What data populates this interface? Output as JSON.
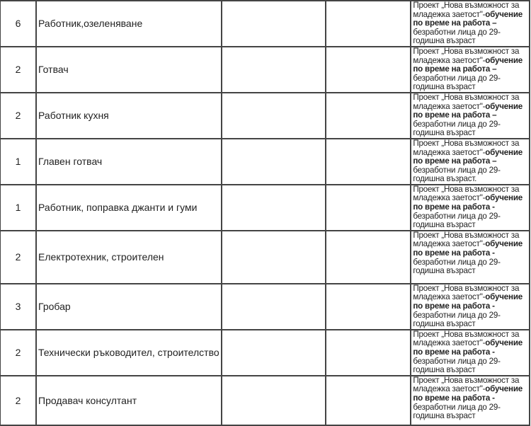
{
  "rows": [
    {
      "count": "6",
      "position": "Работник,озеленяване",
      "project_a": "Проект „Нова възможност за младежка заетост\"-",
      "project_b": "обучение по време на работа –",
      "project_c": "безработни лица до 29-годишна възраст"
    },
    {
      "count": "2",
      "position": "Готвач",
      "project_a": "Проект „Нова възможност за младежка заетост\"-",
      "project_b": "обучение по време на работа –",
      "project_c": "безработни лица до 29-годишна възраст"
    },
    {
      "count": "2",
      "position": "Работник кухня",
      "project_a": "Проект „Нова възможност за младежка заетост\"-",
      "project_b": "обучение по време на работа –",
      "project_c": "безработни лица до 29-годишна възраст"
    },
    {
      "count": "1",
      "position": "Главен готвач",
      "project_a": "Проект „Нова възможност за младежка заетост\"-",
      "project_b": "обучение по време на работа –",
      "project_c": "безработни лица до 29-годишна възраст."
    },
    {
      "count": "1",
      "position": "Работник, поправка джанти и гуми",
      "project_a": "Проект „Нова възможност за младежка заетост\"-",
      "project_b": "обучение по време на работа -",
      "project_c": "безработни лица до 29-годишна възраст"
    },
    {
      "count": "2",
      "position": "Електротехник, строителен",
      "project_a": "Проект „Нова възможност за младежка заетост\"-",
      "project_b": "обучение по време на работа -",
      "project_c": "безработни лица до 29-годишна възраст"
    },
    {
      "count": "3",
      "position": "Гробар",
      "project_a": "Проект „Нова възможност за младежка заетост\"-",
      "project_b": "обучение по време на работа -",
      "project_c": "безработни лица до 29-годишна възраст"
    },
    {
      "count": "2",
      "position": "Технически ръководител, строителство",
      "project_a": "Проект „Нова възможност за младежка заетост\"-",
      "project_b": "обучение по време на работа -",
      "project_c": "безработни лица до 29-годишна възраст"
    },
    {
      "count": "2",
      "position": "Продавач консултант",
      "project_a": "Проект „Нова възможност за младежка заетост\"-",
      "project_b": "обучение по време на работа -",
      "project_c": "безработни лица до 29-годишна възраст"
    }
  ]
}
